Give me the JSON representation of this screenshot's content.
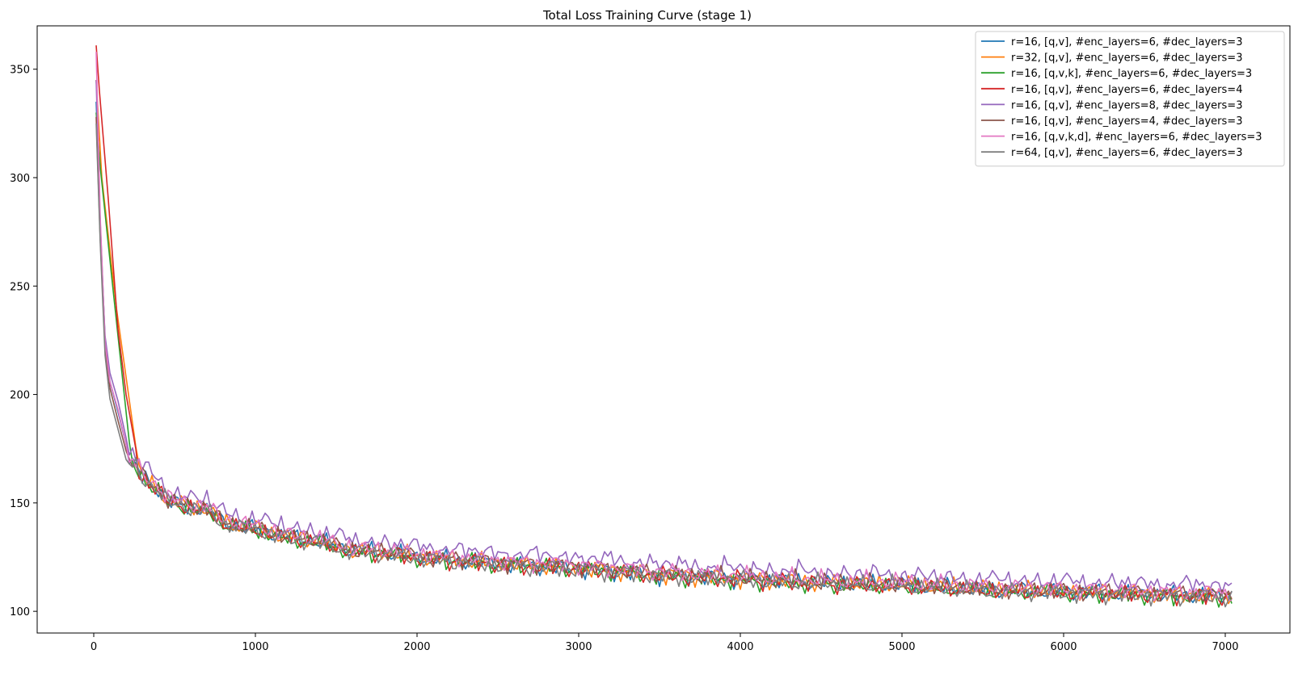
{
  "chart_data": {
    "type": "line",
    "title": "Total Loss Training Curve (stage 1)",
    "xlabel": "",
    "ylabel": "",
    "xlim": [
      -350,
      7400
    ],
    "ylim": [
      90,
      370
    ],
    "x_ticks": [
      0,
      1000,
      2000,
      3000,
      4000,
      5000,
      6000,
      7000
    ],
    "y_ticks": [
      100,
      150,
      200,
      250,
      300,
      350
    ],
    "grid": false,
    "legend": "top-right",
    "series": [
      {
        "name": "r=16, [q,v], #enc_layers=6, #dec_layers=3",
        "color": "#1f77b4",
        "offset": 0.0,
        "phase": 0.0,
        "start": [
          [
            15,
            335
          ],
          [
            40,
            280
          ],
          [
            70,
            225
          ],
          [
            100,
            206
          ],
          [
            150,
            192
          ],
          [
            200,
            177
          ]
        ]
      },
      {
        "name": "r=32, [q,v], #enc_layers=6, #dec_layers=3",
        "color": "#ff7f0e",
        "offset": 0.3,
        "phase": 0.7,
        "start": [
          [
            15,
            345
          ],
          [
            50,
            300
          ],
          [
            140,
            240
          ],
          [
            260,
            176
          ]
        ]
      },
      {
        "name": "r=16, [q,v,k], #enc_layers=6, #dec_layers=3",
        "color": "#2ca02c",
        "offset": -0.6,
        "phase": 1.3,
        "start": [
          [
            15,
            330
          ],
          [
            40,
            305
          ],
          [
            110,
            255
          ],
          [
            220,
            178
          ]
        ]
      },
      {
        "name": "r=16, [q,v], #enc_layers=6, #dec_layers=4",
        "color": "#d62728",
        "offset": -0.3,
        "phase": 2.1,
        "start": [
          [
            15,
            361
          ],
          [
            35,
            340
          ],
          [
            90,
            290
          ],
          [
            150,
            230
          ],
          [
            200,
            200
          ],
          [
            260,
            175
          ]
        ]
      },
      {
        "name": "r=16, [q,v], #enc_layers=8, #dec_layers=3",
        "color": "#9467bd",
        "offset": 4.8,
        "phase": 2.8,
        "start": [
          [
            15,
            345
          ],
          [
            40,
            275
          ],
          [
            70,
            227
          ],
          [
            100,
            210
          ],
          [
            150,
            197
          ],
          [
            200,
            180
          ]
        ]
      },
      {
        "name": "r=16, [q,v], #enc_layers=4, #dec_layers=3",
        "color": "#8c564b",
        "offset": 0.5,
        "phase": 3.5,
        "start": [
          [
            15,
            328
          ],
          [
            40,
            272
          ],
          [
            70,
            222
          ],
          [
            100,
            203
          ],
          [
            150,
            188
          ],
          [
            200,
            174
          ]
        ]
      },
      {
        "name": "r=16, [q,v,k,d], #enc_layers=6, #dec_layers=3",
        "color": "#e377c2",
        "offset": 1.5,
        "phase": 4.2,
        "start": [
          [
            15,
            358
          ],
          [
            40,
            282
          ],
          [
            70,
            224
          ],
          [
            100,
            206
          ],
          [
            150,
            193
          ],
          [
            200,
            177
          ]
        ]
      },
      {
        "name": "r=64, [q,v], #enc_layers=6, #dec_layers=3",
        "color": "#7f7f7f",
        "offset": -0.5,
        "phase": 5.0,
        "start": [
          [
            15,
            325
          ],
          [
            40,
            270
          ],
          [
            70,
            218
          ],
          [
            100,
            198
          ],
          [
            150,
            184
          ],
          [
            200,
            170
          ]
        ]
      }
    ],
    "trend": [
      [
        250,
        168
      ],
      [
        300,
        162
      ],
      [
        400,
        156
      ],
      [
        450,
        151
      ],
      [
        500,
        150
      ],
      [
        600,
        148
      ],
      [
        700,
        147
      ],
      [
        800,
        141
      ],
      [
        900,
        139
      ],
      [
        1000,
        138
      ],
      [
        1200,
        134
      ],
      [
        1400,
        132
      ],
      [
        1600,
        128
      ],
      [
        1800,
        127
      ],
      [
        2000,
        125
      ],
      [
        2500,
        122
      ],
      [
        3000,
        120
      ],
      [
        3500,
        117
      ],
      [
        4000,
        115
      ],
      [
        4500,
        113
      ],
      [
        5000,
        112
      ],
      [
        5500,
        110
      ],
      [
        6000,
        109
      ],
      [
        6500,
        108
      ],
      [
        7000,
        107
      ],
      [
        7050,
        107
      ]
    ],
    "x_end": 7050
  }
}
